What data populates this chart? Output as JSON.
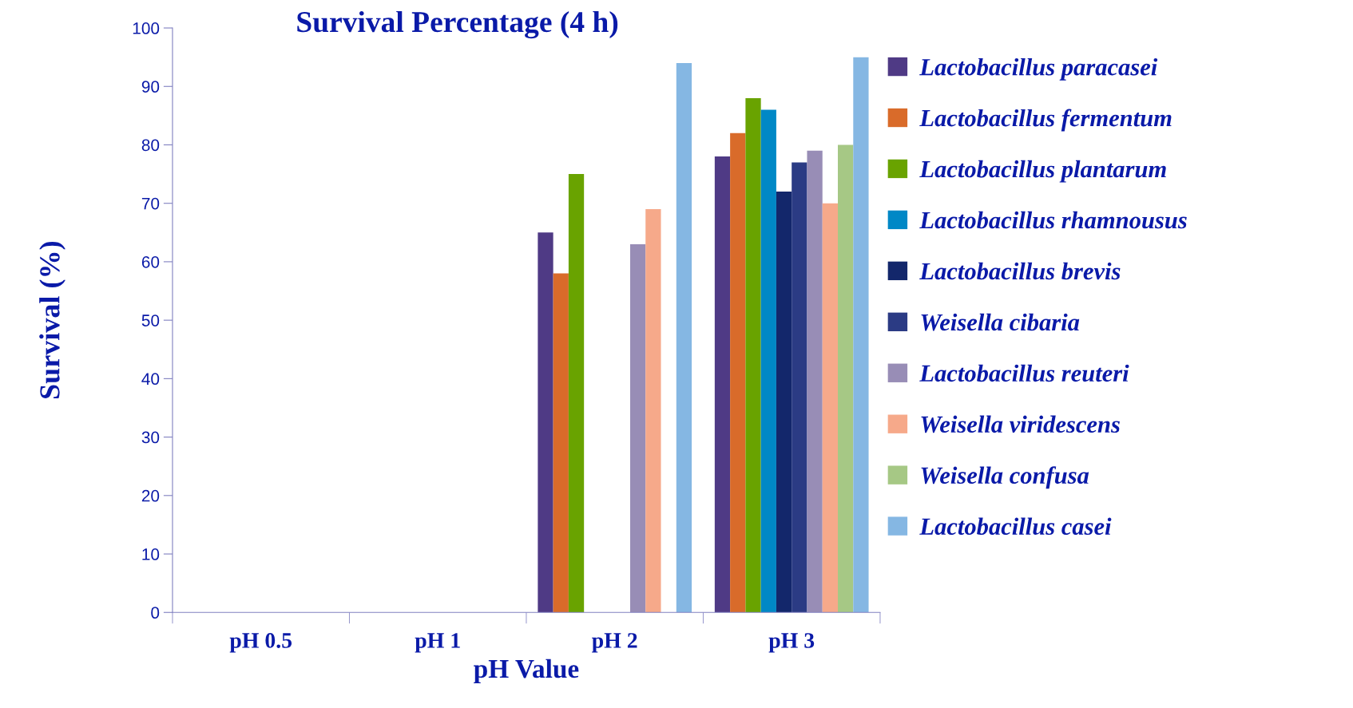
{
  "chart_data": {
    "type": "bar",
    "title": "Survival Percentage (4 h)",
    "xlabel": "pH Value",
    "ylabel": "Survival (%)",
    "categories": [
      "pH 0.5",
      "pH 1",
      "pH 2",
      "pH 3"
    ],
    "series": [
      {
        "name": "Lactobacillus paracasei",
        "color": "#4f3a85",
        "values": [
          0,
          0,
          65,
          78
        ]
      },
      {
        "name": "Lactobacillus fermentum",
        "color": "#d96b2a",
        "values": [
          0,
          0,
          58,
          82
        ]
      },
      {
        "name": "Lactobacillus plantarum",
        "color": "#69a300",
        "values": [
          0,
          0,
          75,
          88
        ]
      },
      {
        "name": "Lactobacillus rhamnousus",
        "color": "#0088c6",
        "values": [
          0,
          0,
          0,
          86
        ]
      },
      {
        "name": "Lactobacillus brevis",
        "color": "#13276b",
        "values": [
          0,
          0,
          0,
          72
        ]
      },
      {
        "name": "Weisella cibaria",
        "color": "#2b3b84",
        "values": [
          0,
          0,
          0,
          77
        ]
      },
      {
        "name": "Lactobacillus reuteri",
        "color": "#988db6",
        "values": [
          0,
          0,
          63,
          79
        ]
      },
      {
        "name": "Weisella viridescens",
        "color": "#f6a98a",
        "values": [
          0,
          0,
          69,
          70
        ]
      },
      {
        "name": "Weisella confusa",
        "color": "#a6c885",
        "values": [
          0,
          0,
          0,
          80
        ]
      },
      {
        "name": "Lactobacillus casei",
        "color": "#85b7e3",
        "values": [
          0,
          0,
          94,
          95
        ]
      }
    ],
    "ylim": [
      0,
      100
    ],
    "yticks": [
      0,
      10,
      20,
      30,
      40,
      50,
      60,
      70,
      80,
      90,
      100
    ],
    "grid": false,
    "legend": "right"
  }
}
